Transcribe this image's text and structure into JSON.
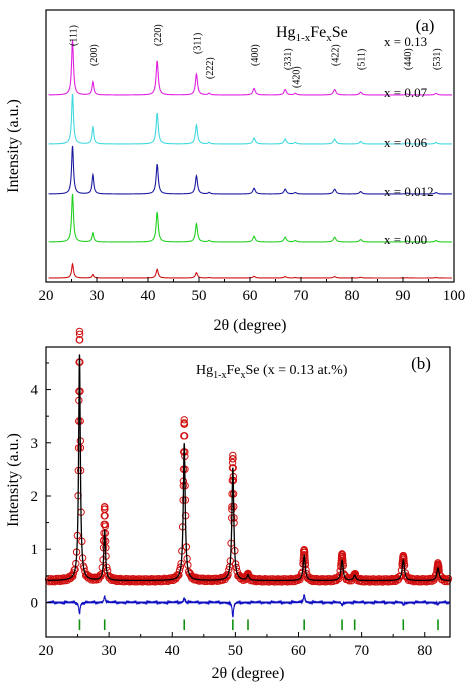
{
  "chart_data": [
    {
      "type": "line",
      "panel": "(a)",
      "title": "Hg1-xFexSe",
      "title_parts": {
        "base": "Hg",
        "sub1": "1-x",
        "mid": "Fe",
        "sub2": "x",
        "end": "Se"
      },
      "xlabel": "2θ (degree)",
      "ylabel": "Intensity (a.u.)",
      "xlim": [
        20,
        100
      ],
      "xticks": [
        20,
        30,
        40,
        50,
        60,
        70,
        80,
        90,
        100
      ],
      "y_ticks_shown": false,
      "grid": false,
      "hkl_labels": [
        {
          "label": "(111)",
          "x": 25.2
        },
        {
          "label": "(200)",
          "x": 29.2
        },
        {
          "label": "(220)",
          "x": 41.8
        },
        {
          "label": "(311)",
          "x": 49.5
        },
        {
          "label": "(222)",
          "x": 52.0
        },
        {
          "label": "(400)",
          "x": 60.8
        },
        {
          "label": "(331)",
          "x": 66.9
        },
        {
          "label": "(420)",
          "x": 68.9
        },
        {
          "label": "(422)",
          "x": 76.6
        },
        {
          "label": "(511)",
          "x": 81.7
        },
        {
          "label": "(440)",
          "x": 90.8
        },
        {
          "label": "(531)",
          "x": 96.5
        }
      ],
      "peaks": [
        {
          "x": 25.2,
          "w": 0.22,
          "rel": 1.0
        },
        {
          "x": 29.2,
          "w": 0.22,
          "rel": 0.25
        },
        {
          "x": 41.8,
          "w": 0.25,
          "rel": 0.62
        },
        {
          "x": 49.5,
          "w": 0.25,
          "rel": 0.38
        },
        {
          "x": 52.0,
          "w": 0.25,
          "rel": 0.03
        },
        {
          "x": 60.8,
          "w": 0.28,
          "rel": 0.12
        },
        {
          "x": 66.9,
          "w": 0.28,
          "rel": 0.1
        },
        {
          "x": 68.9,
          "w": 0.28,
          "rel": 0.03
        },
        {
          "x": 76.6,
          "w": 0.3,
          "rel": 0.1
        },
        {
          "x": 81.7,
          "w": 0.3,
          "rel": 0.05
        },
        {
          "x": 90.8,
          "w": 0.3,
          "rel": 0.02
        },
        {
          "x": 96.5,
          "w": 0.3,
          "rel": 0.03
        }
      ],
      "series": [
        {
          "name": "x = 0.13",
          "color": "#e020e0",
          "scale": 1.0,
          "p200": 0.24
        },
        {
          "name": "x = 0.07",
          "color": "#40d8e0",
          "scale": 0.96,
          "p200": 0.34
        },
        {
          "name": "x = 0.06",
          "color": "#1a1aa0",
          "scale": 0.9,
          "p200": 0.4
        },
        {
          "name": "x = 0.012",
          "color": "#20d020",
          "scale": 0.88,
          "p200": 0.19
        },
        {
          "name": "x = 0.00",
          "color": "#cc1010",
          "scale": 0.52,
          "p200": 0.25
        }
      ]
    },
    {
      "type": "scatter",
      "panel": "(b)",
      "title": "Hg1-xFexSe (x = 0.13 at.%)",
      "title_parts": {
        "base": "Hg",
        "sub1": "1-x",
        "mid": "Fe",
        "sub2": "x",
        "end": "Se (x = 0.13 at.%)"
      },
      "xlabel": "2θ (degree)",
      "ylabel": "Intensity (a.u.)",
      "xlim": [
        20,
        84
      ],
      "ylim": [
        -0.65,
        4.8
      ],
      "xticks": [
        20,
        30,
        40,
        50,
        60,
        70,
        80
      ],
      "yticks": [
        0,
        1,
        2,
        3,
        4
      ],
      "grid": false,
      "baseline": 0.41,
      "observed_color": "#d01010",
      "calculated_color": "#000000",
      "difference_color": "#1010c0",
      "difference_offset": 0.0,
      "bragg_color": "#109010",
      "bragg_positions": [
        25.3,
        29.3,
        41.9,
        49.6,
        52.0,
        60.9,
        66.9,
        68.9,
        76.6,
        82.1
      ],
      "peaks": [
        {
          "x": 25.3,
          "h": 4.25,
          "obs": 4.68,
          "w": 0.16
        },
        {
          "x": 29.3,
          "h": 0.95,
          "obs": 1.38,
          "w": 0.16
        },
        {
          "x": 41.9,
          "h": 2.58,
          "obs": 3.02,
          "w": 0.18
        },
        {
          "x": 49.6,
          "h": 2.12,
          "obs": 2.35,
          "w": 0.18
        },
        {
          "x": 52.0,
          "h": 0.1,
          "obs": 0.12,
          "w": 0.18
        },
        {
          "x": 60.9,
          "h": 0.47,
          "obs": 0.58,
          "w": 0.2
        },
        {
          "x": 66.9,
          "h": 0.38,
          "obs": 0.5,
          "w": 0.2
        },
        {
          "x": 68.9,
          "h": 0.1,
          "obs": 0.12,
          "w": 0.2
        },
        {
          "x": 76.6,
          "h": 0.39,
          "obs": 0.47,
          "w": 0.22
        },
        {
          "x": 82.1,
          "h": 0.24,
          "obs": 0.31,
          "w": 0.22
        }
      ],
      "difference_features": [
        {
          "x": 25.3,
          "d": -0.22
        },
        {
          "x": 29.3,
          "d": 0.12
        },
        {
          "x": 41.9,
          "d": 0.08
        },
        {
          "x": 49.6,
          "d": -0.28
        },
        {
          "x": 60.9,
          "d": 0.15
        },
        {
          "x": 66.9,
          "d": -0.06
        },
        {
          "x": 76.6,
          "d": -0.05
        },
        {
          "x": 82.1,
          "d": -0.04
        }
      ]
    }
  ]
}
